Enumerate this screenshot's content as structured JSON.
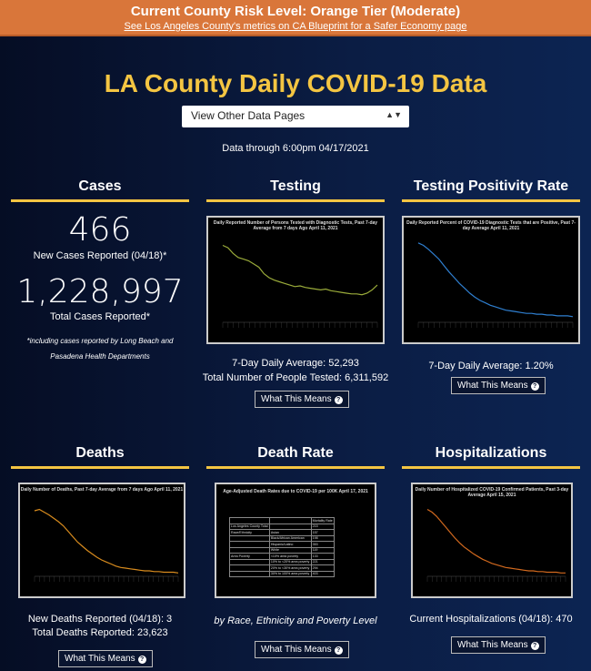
{
  "banner": {
    "title": "Current County Risk Level: Orange Tier (Moderate)",
    "link": "See Los Angeles County's metrics on CA Blueprint for a Safer Economy page"
  },
  "page": {
    "title": "LA County Daily COVID-19 Data",
    "select_value": "View Other Data Pages",
    "data_through": "Data through 6:00pm 04/17/2021"
  },
  "cases": {
    "heading": "Cases",
    "new_cases": "466",
    "new_cases_label": "New Cases Reported (04/18)*",
    "total_cases": "1,228,997",
    "total_label": "Total Cases Reported*",
    "note": "*including cases reported by Long Beach and Pasadena Health Departments"
  },
  "testing": {
    "heading": "Testing",
    "chart_title": "Daily Reported Number of Persons Tested with Diagnostic Tests, Past 7-day Average from 7 days Ago April 11, 2021",
    "avg": "7-Day Daily Average: 52,293",
    "total": "Total Number of People Tested: 6,311,592",
    "button": "What This Means"
  },
  "positivity": {
    "heading": "Testing Positivity Rate",
    "chart_title": "Daily Reported Percent of COVID-19 Diagnostic Tests that are Positive, Past 7-day Average April 11, 2021",
    "avg": "7-Day Daily Average: 1.20%",
    "button": "What This Means"
  },
  "deaths": {
    "heading": "Deaths",
    "chart_title": "Daily Number of Deaths, Past 7-day Average from 7 days Ago April 11, 2021",
    "new": "New Deaths Reported (04/18): 3",
    "total": "Total Deaths Reported: 23,623",
    "button": "What This Means"
  },
  "death_rate": {
    "heading": "Death Rate",
    "chart_title": "Age-Adjusted Death Rates due to COVID-19 per 100K April 17, 2021",
    "table": {
      "header": [
        "",
        "",
        "Mortality Rate"
      ],
      "rows": [
        [
          "Los Angeles County Total",
          "",
          "215"
        ],
        [
          "Race/Ethnicity",
          "Asian",
          "157"
        ],
        [
          "",
          "Black/African American",
          "198"
        ],
        [
          "",
          "Hispanic/Latino",
          "353"
        ],
        [
          "",
          "White",
          "119"
        ],
        [
          "Area Poverty",
          "<10% area poverty",
          "133"
        ],
        [
          "",
          "10% to <20% area poverty",
          "221"
        ],
        [
          "",
          "20% to <30% area poverty",
          "294"
        ],
        [
          "",
          "30% to 100% area poverty",
          "403"
        ]
      ]
    },
    "caption": "by Race, Ethnicity and Poverty Level",
    "button": "What This Means"
  },
  "hospitalizations": {
    "heading": "Hospitalizations",
    "chart_title": "Daily Number of Hospitalized COVID-19 Confirmed Patients, Past 3-day Average April 15, 2021",
    "current": "Current Hospitalizations (04/18): 470",
    "button": "What This Means"
  },
  "colors": {
    "accent": "#f4c542",
    "banner": "#d9763a",
    "testing_line": "#9aab3a",
    "positivity_line": "#2f7fd0",
    "deaths_line": "#d98c1e",
    "hosp_line": "#d2691e"
  },
  "chart_data": [
    {
      "type": "line",
      "id": "testing",
      "values": [
        95,
        92,
        85,
        80,
        78,
        76,
        72,
        68,
        60,
        55,
        52,
        50,
        48,
        46,
        44,
        45,
        43,
        42,
        41,
        40,
        41,
        39,
        38,
        37,
        36,
        35,
        35,
        34,
        36,
        40,
        46
      ]
    },
    {
      "type": "line",
      "id": "positivity",
      "values": [
        98,
        95,
        90,
        84,
        78,
        70,
        62,
        55,
        48,
        42,
        36,
        31,
        27,
        24,
        21,
        19,
        17,
        15,
        14,
        13,
        12,
        11,
        11,
        10,
        10,
        9,
        9,
        8,
        8,
        8,
        7
      ]
    },
    {
      "type": "line",
      "id": "deaths",
      "values": [
        96,
        98,
        94,
        90,
        85,
        80,
        74,
        66,
        58,
        50,
        44,
        38,
        33,
        28,
        24,
        21,
        18,
        15,
        13,
        12,
        11,
        10,
        9,
        8,
        8,
        7,
        7,
        6,
        6,
        6,
        5
      ]
    },
    {
      "type": "line",
      "id": "hospitalizations",
      "values": [
        98,
        94,
        88,
        80,
        72,
        64,
        56,
        49,
        43,
        38,
        33,
        29,
        25,
        22,
        19,
        17,
        15,
        13,
        12,
        11,
        10,
        9,
        8,
        8,
        7,
        7,
        6,
        6,
        6,
        5,
        5
      ]
    }
  ]
}
